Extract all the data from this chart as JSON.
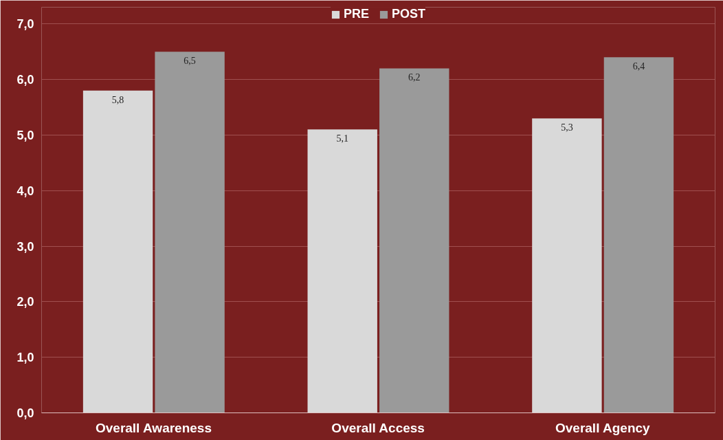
{
  "chart_data": {
    "type": "bar",
    "categories": [
      "Overall Awareness",
      "Overall Access",
      "Overall Agency"
    ],
    "series": [
      {
        "name": "PRE",
        "color": "#d9d9d9",
        "values": [
          5.8,
          5.1,
          5.3
        ],
        "value_labels": [
          "5,8",
          "5,1",
          "5,3"
        ]
      },
      {
        "name": "POST",
        "color": "#9a9a9a",
        "values": [
          6.5,
          6.2,
          6.4
        ],
        "value_labels": [
          "6,5",
          "6,2",
          "6,4"
        ]
      }
    ],
    "ylim": [
      0,
      7.3
    ],
    "yticks": [
      {
        "value": 0,
        "label": "0,0"
      },
      {
        "value": 1,
        "label": "1,0"
      },
      {
        "value": 2,
        "label": "2,0"
      },
      {
        "value": 3,
        "label": "3,0"
      },
      {
        "value": 4,
        "label": "4,0"
      },
      {
        "value": 5,
        "label": "5,0"
      },
      {
        "value": 6,
        "label": "6,0"
      },
      {
        "value": 7,
        "label": "7,0"
      }
    ],
    "grid": "y",
    "legend": "top"
  }
}
